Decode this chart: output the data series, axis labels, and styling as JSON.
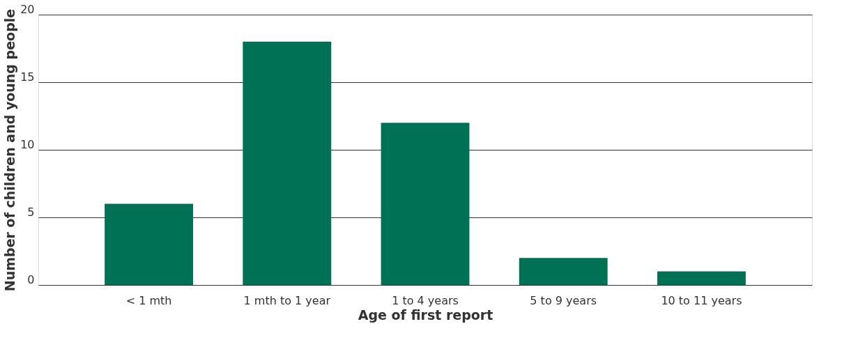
{
  "chart_data": {
    "type": "bar",
    "xlabel": "Age of first report",
    "ylabel": "Number of children and young people",
    "categories": [
      "< 1 mth",
      "1 mth to 1 year",
      "1 to 4 years",
      "5 to 9 years",
      "10 to 11 years"
    ],
    "values": [
      6,
      18,
      12,
      2,
      1
    ],
    "color": "#007155",
    "ylim": [
      0,
      20
    ],
    "yticks": [
      0,
      5,
      10,
      15,
      20
    ],
    "grid": "y"
  }
}
